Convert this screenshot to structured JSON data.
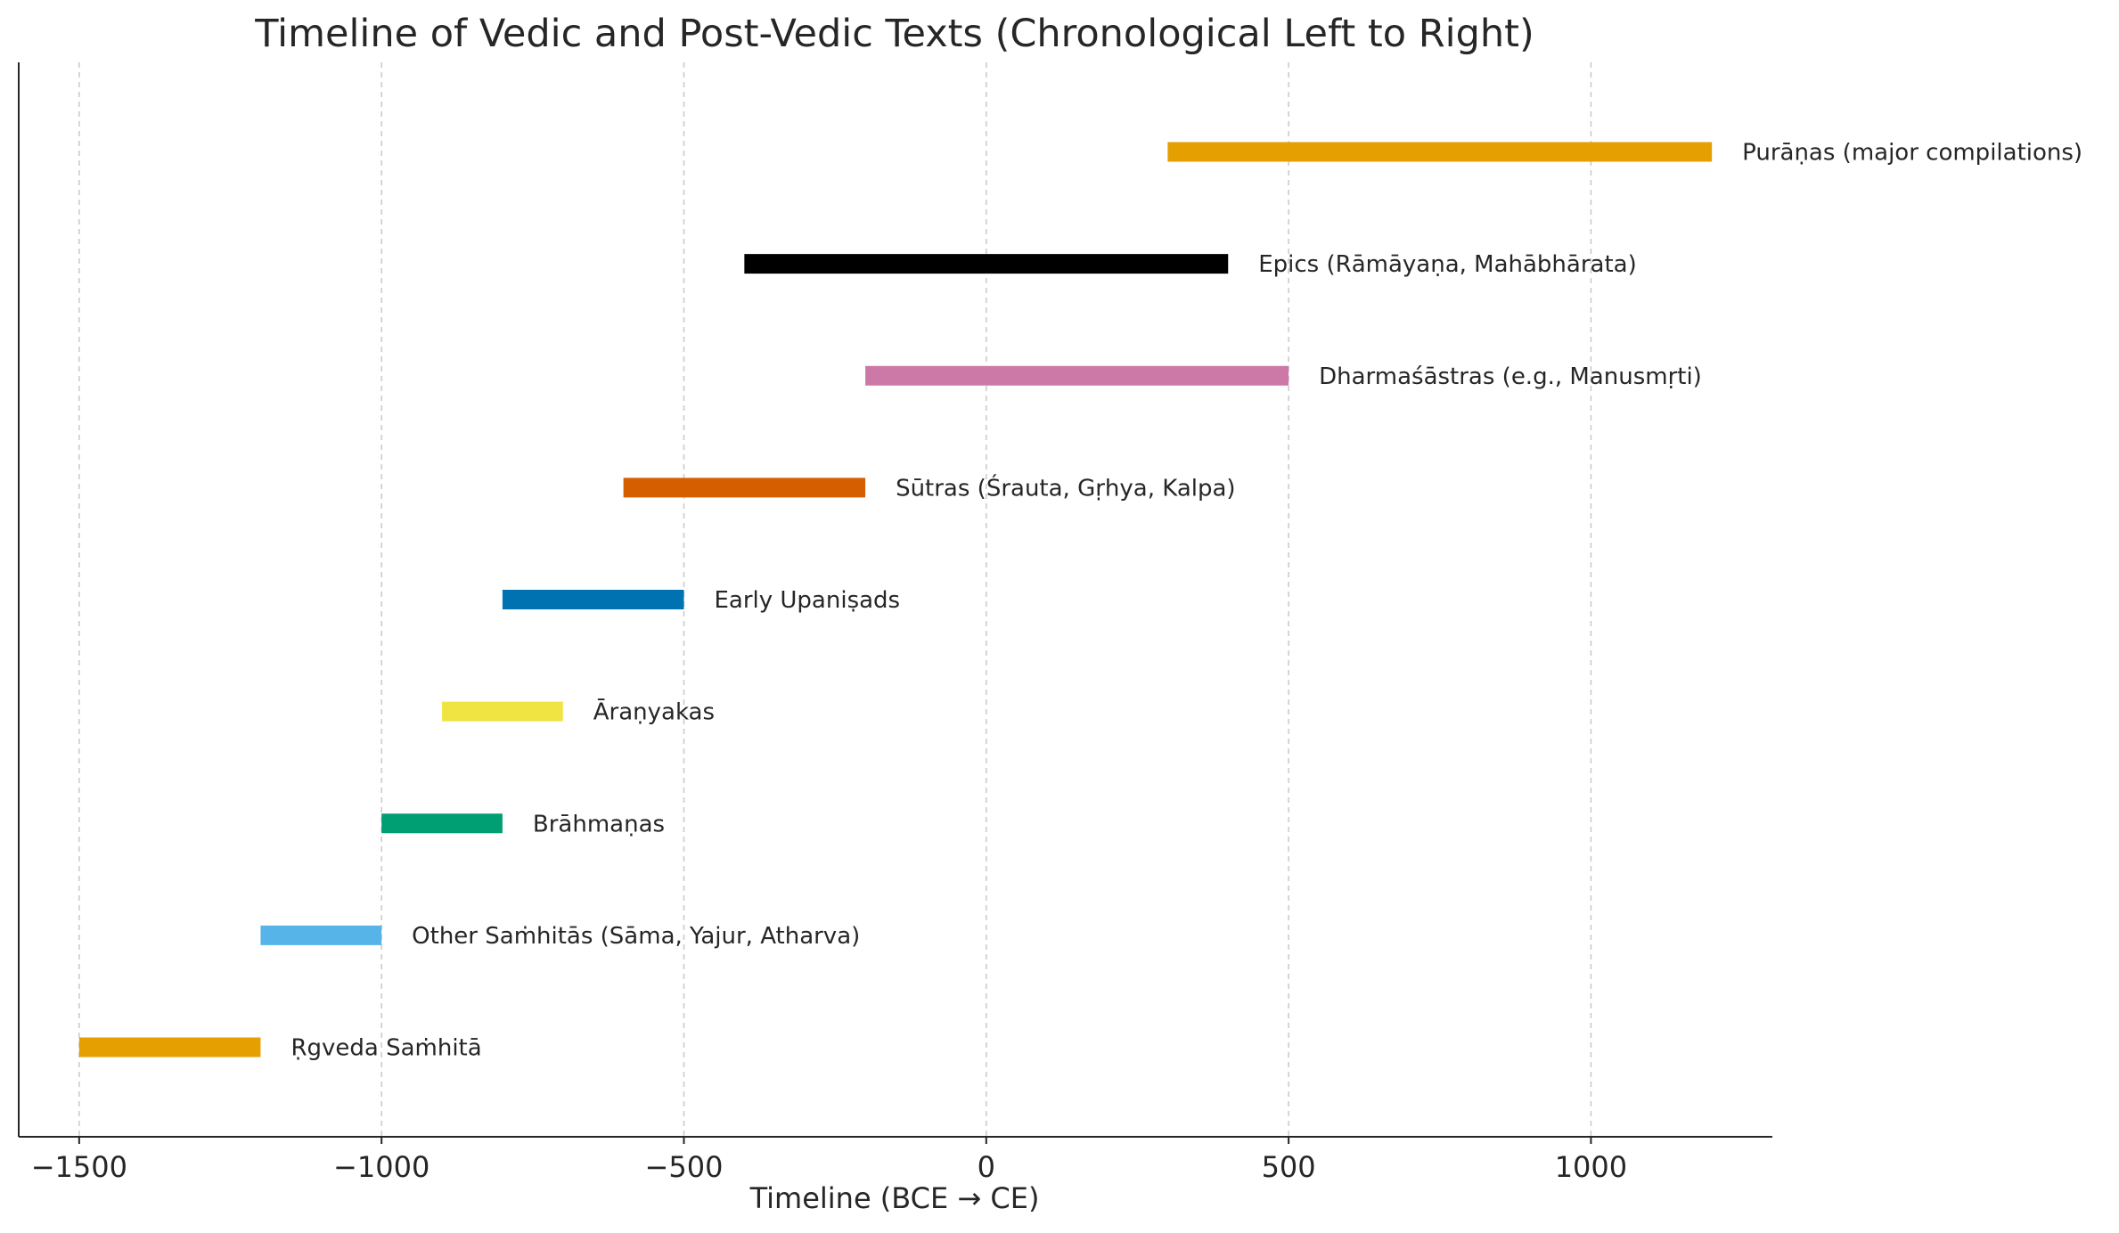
{
  "chart_data": {
    "type": "bar",
    "orientation": "horizontal",
    "title": "Timeline of Vedic and Post-Vedic Texts (Chronological Left to Right)",
    "xlabel": "Timeline (BCE → CE)",
    "ylabel": "",
    "xlim": [
      -1600,
      1300
    ],
    "xticks": [
      -1500,
      -1000,
      -500,
      0,
      500,
      1000
    ],
    "xtick_labels": [
      "−1500",
      "−1000",
      "−500",
      "0",
      "500",
      "1000"
    ],
    "grid": "vertical dashed",
    "items": [
      {
        "label": "Ṛgveda Saṁhitā",
        "start": -1500,
        "end": -1200,
        "color": "#E69F00"
      },
      {
        "label": "Other Saṁhitās (Sāma, Yajur, Atharva)",
        "start": -1200,
        "end": -1000,
        "color": "#56B4E9"
      },
      {
        "label": "Brāhmaṇas",
        "start": -1000,
        "end": -800,
        "color": "#009E73"
      },
      {
        "label": "Āraṇyakas",
        "start": -900,
        "end": -700,
        "color": "#F0E442"
      },
      {
        "label": "Early Upaniṣads",
        "start": -800,
        "end": -500,
        "color": "#0072B2"
      },
      {
        "label": "Sūtras (Śrauta, Gṛhya, Kalpa)",
        "start": -600,
        "end": -200,
        "color": "#D55E00"
      },
      {
        "label": "Dharmaśāstras (e.g., Manusmṛti)",
        "start": -200,
        "end": 500,
        "color": "#CC79A7"
      },
      {
        "label": "Epics (Rāmāyaṇa, Mahābhārata)",
        "start": -400,
        "end": 400,
        "color": "#000000"
      },
      {
        "label": "Purāṇas (major compilations)",
        "start": 300,
        "end": 1200,
        "color": "#E69F00"
      }
    ]
  }
}
